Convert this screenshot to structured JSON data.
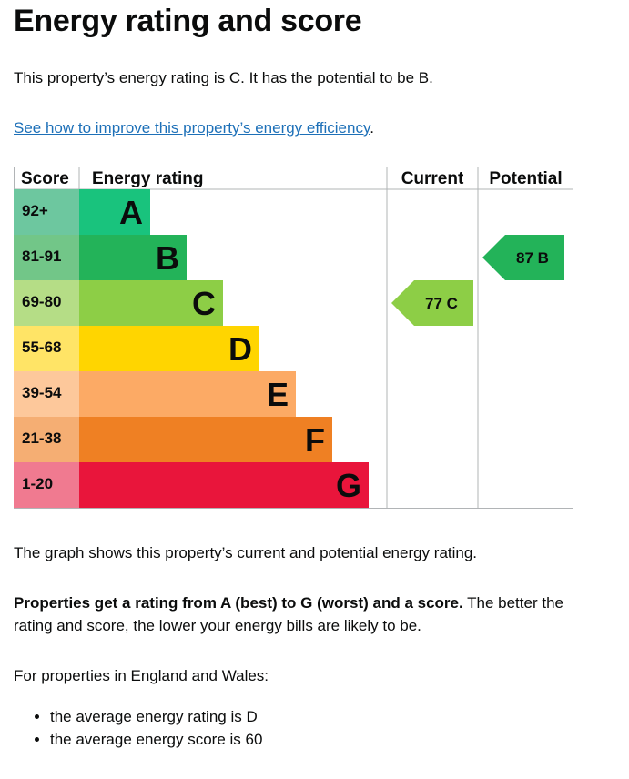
{
  "page": {
    "title": "Energy rating and score",
    "intro": "This property’s energy rating is C. It has the potential to be B.",
    "improve_link": "See how to improve this property’s energy efficiency",
    "improve_link_suffix": ".",
    "graph_note": "The graph shows this property’s current and potential energy rating.",
    "rating_bold": "Properties get a rating from A (best) to G (worst) and a score.",
    "rating_rest": " The better the rating and score, the lower your energy bills are likely to be.",
    "regional_intro": "For properties in England and Wales:",
    "bullets": [
      "the average energy rating is D",
      "the average energy score is 60"
    ]
  },
  "chart_data": {
    "type": "bar",
    "columns": [
      "Score",
      "Energy rating",
      "Current",
      "Potential"
    ],
    "bands": [
      {
        "letter": "A",
        "score_range": "92+",
        "color": "#19c37d",
        "score_color": "#6dc79f"
      },
      {
        "letter": "B",
        "score_range": "81-91",
        "color": "#23b359",
        "score_color": "#72c688"
      },
      {
        "letter": "C",
        "score_range": "69-80",
        "color": "#8dce46",
        "score_color": "#b5dd86"
      },
      {
        "letter": "D",
        "score_range": "55-68",
        "color": "#ffd500",
        "score_color": "#ffe466"
      },
      {
        "letter": "E",
        "score_range": "39-54",
        "color": "#fcaa65",
        "score_color": "#fdc89b"
      },
      {
        "letter": "F",
        "score_range": "21-38",
        "color": "#ef8023",
        "score_color": "#f5ae73"
      },
      {
        "letter": "G",
        "score_range": "1-20",
        "color": "#e9153b",
        "score_color": "#f07a90"
      }
    ],
    "current": {
      "score": 77,
      "band": "C",
      "color": "#8dce46"
    },
    "potential": {
      "score": 87,
      "band": "B",
      "color": "#23b359"
    }
  }
}
